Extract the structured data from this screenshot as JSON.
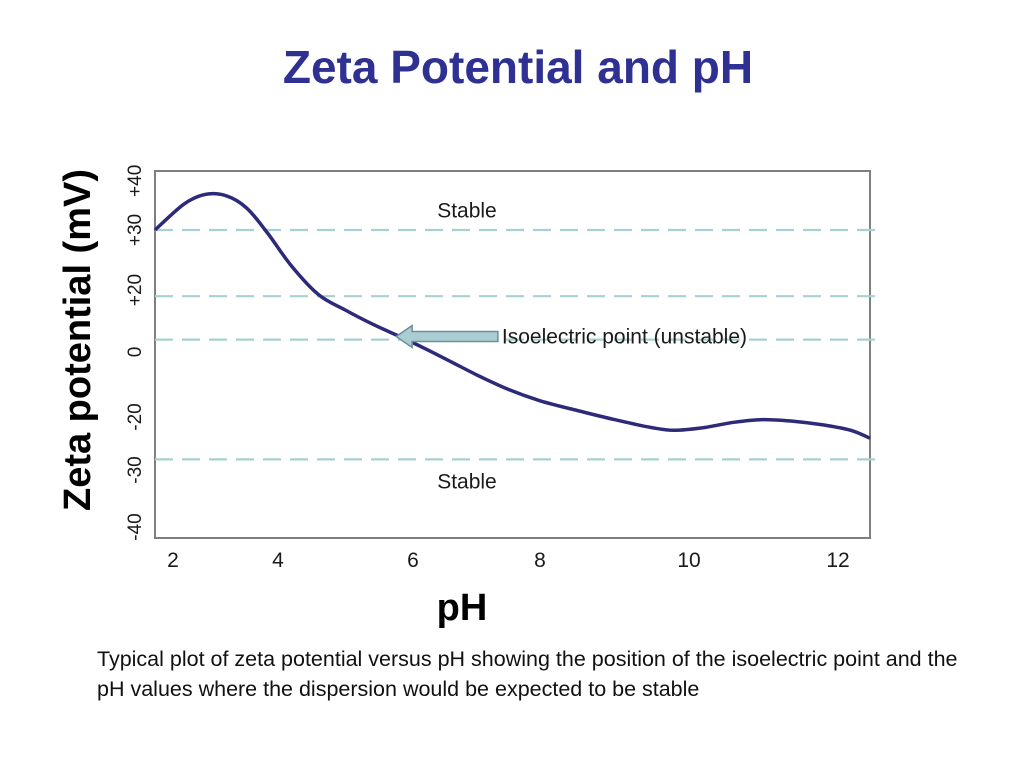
{
  "slide": {
    "title": "Zeta Potential and pH",
    "caption": "Typical plot of zeta potential versus pH showing the position of the isoelectric point and the pH values where the dispersion would be expected to be stable"
  },
  "colors": {
    "title": "#2e3192",
    "curve": "#2e2a7a",
    "threshold_lines": "#a8d0d2",
    "frame": "#7f7f7f",
    "arrow_fill": "#a9cdd3",
    "arrow_stroke": "#6d8f9a"
  },
  "chart_data": {
    "type": "line",
    "xlabel": "pH",
    "ylabel": "Zeta potential (mV)",
    "xlim": [
      1.75,
      12.5
    ],
    "ylim": [
      -40,
      42
    ],
    "x_ticks": [
      2,
      4,
      6,
      8,
      10,
      12
    ],
    "x_tick_labels": [
      "2",
      "4",
      "6",
      "8",
      "10",
      "12"
    ],
    "y_ticks": [
      40,
      30,
      20,
      0,
      -20,
      -30,
      -40
    ],
    "y_tick_labels": [
      "+40",
      "+30",
      "+20",
      "0",
      "-20",
      "-30",
      "-40"
    ],
    "grid": false,
    "reference_lines_y": [
      30,
      18,
      4,
      -28
    ],
    "series": [
      {
        "x": [
          1.75,
          2.2,
          2.6,
          3.0,
          3.4,
          3.8,
          4.2,
          4.6,
          5.0,
          5.4,
          5.8,
          6.2,
          6.6,
          7.0,
          7.5,
          8.0,
          8.5,
          9.0,
          9.5,
          9.8,
          10.2,
          10.6,
          11.0,
          11.4,
          11.8,
          12.2,
          12.5
        ],
        "y": [
          30,
          35.2,
          37.2,
          37.0,
          34.5,
          29.5,
          24.0,
          18.5,
          13.5,
          9.0,
          5.0,
          1.0,
          -3.0,
          -7.0,
          -11.5,
          -15.0,
          -18.0,
          -20.5,
          -22.0,
          -22.5,
          -22.0,
          -21.0,
          -20.5,
          -20.8,
          -21.5,
          -22.5,
          -24.0
        ]
      }
    ],
    "annotations": [
      {
        "text": "Stable",
        "x": 6.85,
        "y": 34
      },
      {
        "text": "Isoelectric point (unstable)",
        "x": 7.4,
        "y": 5,
        "arrow_to_x": 5.75,
        "arrow_to_y": 5
      },
      {
        "text": "Stable",
        "x": 6.85,
        "y": -32
      }
    ]
  }
}
